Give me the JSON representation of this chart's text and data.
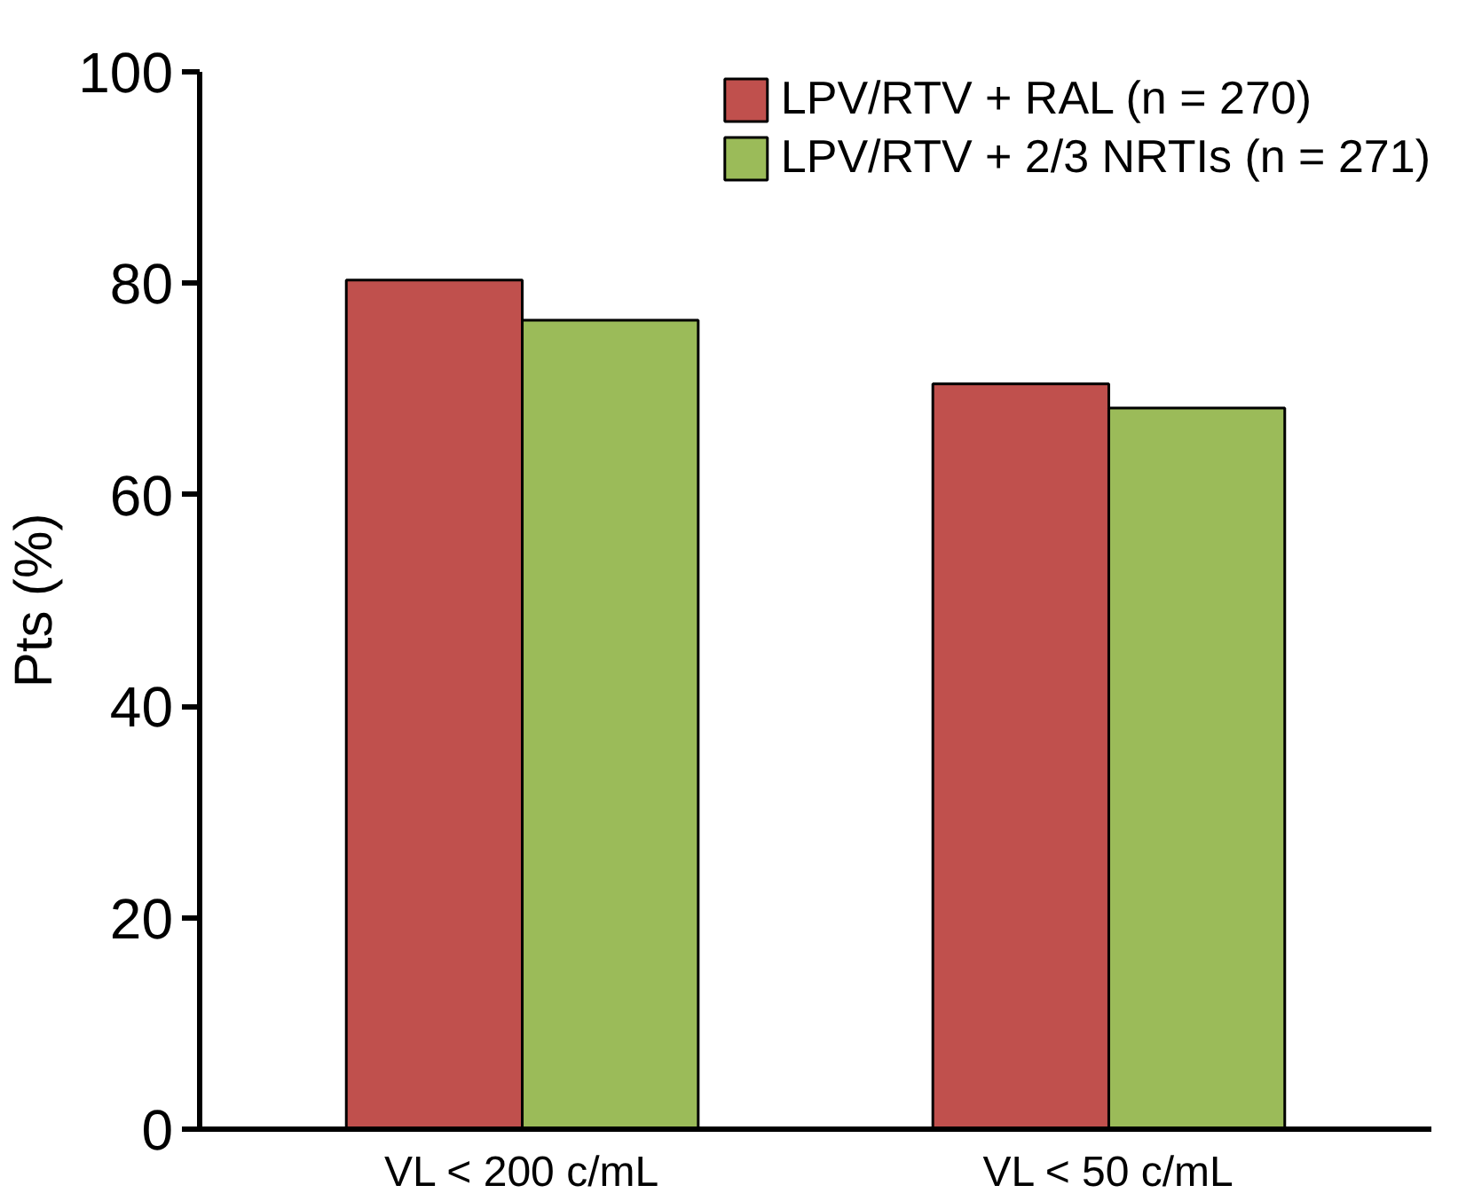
{
  "chart_data": {
    "type": "bar",
    "ylabel": "Pts (%)",
    "categories": [
      "VL < 200 c/mL",
      "VL < 50 c/mL"
    ],
    "series": [
      {
        "name": "LPV/RTV + RAL (n = 270)",
        "color": "#c0504d",
        "values": [
          80.3,
          70.5
        ]
      },
      {
        "name": "LPV/RTV + 2/3 NRTIs (n = 271)",
        "color": "#9bbb59",
        "values": [
          76.5,
          68.2
        ]
      }
    ],
    "ylim": [
      0,
      100
    ],
    "yticks": [
      0,
      20,
      40,
      60,
      80,
      100
    ],
    "grid": false,
    "legend": "top right"
  }
}
